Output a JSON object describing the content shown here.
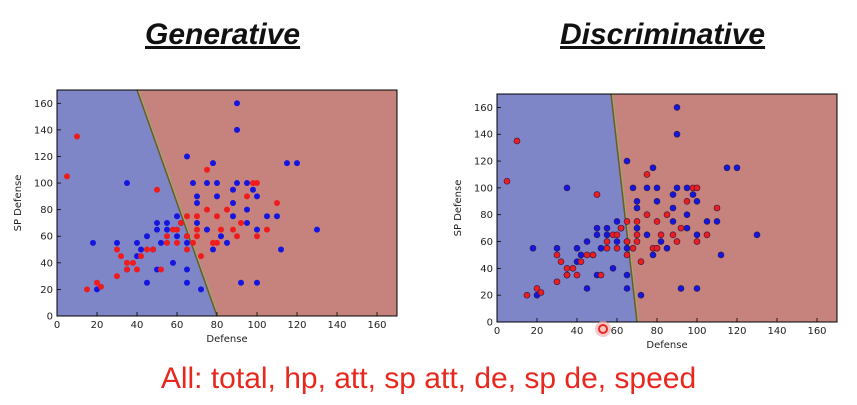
{
  "chart_data": [
    {
      "type": "scatter",
      "title": "Generative",
      "xlabel": "Defense",
      "ylabel": "SP Defense",
      "xlim": [
        0,
        170
      ],
      "ylim": [
        0,
        170
      ],
      "xticks": [
        0,
        20,
        40,
        60,
        80,
        100,
        120,
        140,
        160
      ],
      "yticks": [
        0,
        20,
        40,
        60,
        80,
        100,
        120,
        140,
        160
      ],
      "regions": [
        {
          "color": "#7f86c8",
          "side": "left"
        },
        {
          "color": "#c6827c",
          "side": "right"
        }
      ],
      "boundary": [
        [
          40,
          170
        ],
        [
          80,
          0
        ]
      ],
      "series": [
        {
          "color": "#1515e0",
          "points": [
            [
              18,
              55
            ],
            [
              20,
              20
            ],
            [
              30,
              55
            ],
            [
              35,
              35
            ],
            [
              35,
              100
            ],
            [
              40,
              55
            ],
            [
              40,
              45
            ],
            [
              42,
              50
            ],
            [
              45,
              25
            ],
            [
              45,
              60
            ],
            [
              48,
              50
            ],
            [
              50,
              65
            ],
            [
              50,
              70
            ],
            [
              50,
              35
            ],
            [
              52,
              55
            ],
            [
              55,
              65
            ],
            [
              55,
              70
            ],
            [
              58,
              40
            ],
            [
              60,
              60
            ],
            [
              60,
              75
            ],
            [
              62,
              70
            ],
            [
              65,
              60
            ],
            [
              65,
              55
            ],
            [
              65,
              35
            ],
            [
              65,
              120
            ],
            [
              65,
              25
            ],
            [
              68,
              100
            ],
            [
              70,
              90
            ],
            [
              70,
              85
            ],
            [
              70,
              70
            ],
            [
              72,
              20
            ],
            [
              75,
              100
            ],
            [
              75,
              65
            ],
            [
              78,
              115
            ],
            [
              78,
              50
            ],
            [
              80,
              100
            ],
            [
              80,
              90
            ],
            [
              82,
              60
            ],
            [
              85,
              55
            ],
            [
              88,
              75
            ],
            [
              88,
              85
            ],
            [
              88,
              95
            ],
            [
              90,
              160
            ],
            [
              90,
              140
            ],
            [
              90,
              100
            ],
            [
              92,
              25
            ],
            [
              95,
              100
            ],
            [
              95,
              70
            ],
            [
              95,
              80
            ],
            [
              98,
              95
            ],
            [
              100,
              25
            ],
            [
              100,
              90
            ],
            [
              100,
              65
            ],
            [
              105,
              75
            ],
            [
              110,
              75
            ],
            [
              112,
              50
            ],
            [
              115,
              115
            ],
            [
              120,
              115
            ],
            [
              130,
              65
            ]
          ]
        },
        {
          "color": "#ee1c1c",
          "points": [
            [
              5,
              105
            ],
            [
              10,
              135
            ],
            [
              15,
              20
            ],
            [
              20,
              25
            ],
            [
              22,
              22
            ],
            [
              30,
              30
            ],
            [
              30,
              50
            ],
            [
              32,
              45
            ],
            [
              35,
              35
            ],
            [
              35,
              40
            ],
            [
              38,
              40
            ],
            [
              40,
              35
            ],
            [
              42,
              45
            ],
            [
              45,
              50
            ],
            [
              48,
              50
            ],
            [
              50,
              95
            ],
            [
              52,
              35
            ],
            [
              55,
              55
            ],
            [
              55,
              60
            ],
            [
              58,
              65
            ],
            [
              60,
              55
            ],
            [
              60,
              65
            ],
            [
              62,
              70
            ],
            [
              65,
              50
            ],
            [
              65,
              60
            ],
            [
              65,
              75
            ],
            [
              68,
              55
            ],
            [
              70,
              60
            ],
            [
              70,
              65
            ],
            [
              70,
              75
            ],
            [
              72,
              45
            ],
            [
              75,
              80
            ],
            [
              75,
              110
            ],
            [
              78,
              55
            ],
            [
              80,
              55
            ],
            [
              80,
              75
            ],
            [
              82,
              65
            ],
            [
              85,
              80
            ],
            [
              88,
              65
            ],
            [
              90,
              60
            ],
            [
              92,
              70
            ],
            [
              95,
              90
            ],
            [
              98,
              100
            ],
            [
              100,
              100
            ],
            [
              100,
              60
            ],
            [
              105,
              65
            ],
            [
              110,
              85
            ]
          ]
        }
      ]
    },
    {
      "type": "scatter",
      "title": "Discriminative",
      "xlabel": "Defense",
      "ylabel": "SP Defense",
      "xlim": [
        0,
        170
      ],
      "ylim": [
        0,
        170
      ],
      "xticks": [
        0,
        20,
        40,
        60,
        80,
        100,
        120,
        140,
        160
      ],
      "yticks": [
        0,
        20,
        40,
        60,
        80,
        100,
        120,
        140,
        160
      ],
      "regions": [
        {
          "color": "#7f86c8",
          "side": "left"
        },
        {
          "color": "#c6827c",
          "side": "right"
        }
      ],
      "boundary": [
        [
          57,
          170
        ],
        [
          70,
          0
        ]
      ],
      "series": [
        {
          "color": "#1515e0",
          "points": [
            [
              18,
              55
            ],
            [
              20,
              20
            ],
            [
              30,
              55
            ],
            [
              35,
              35
            ],
            [
              35,
              100
            ],
            [
              40,
              55
            ],
            [
              40,
              45
            ],
            [
              42,
              50
            ],
            [
              45,
              25
            ],
            [
              45,
              60
            ],
            [
              48,
              50
            ],
            [
              50,
              65
            ],
            [
              50,
              70
            ],
            [
              50,
              35
            ],
            [
              52,
              55
            ],
            [
              55,
              65
            ],
            [
              55,
              70
            ],
            [
              58,
              40
            ],
            [
              60,
              60
            ],
            [
              60,
              75
            ],
            [
              62,
              70
            ],
            [
              65,
              60
            ],
            [
              65,
              55
            ],
            [
              65,
              35
            ],
            [
              65,
              120
            ],
            [
              65,
              25
            ],
            [
              68,
              100
            ],
            [
              70,
              90
            ],
            [
              70,
              85
            ],
            [
              70,
              70
            ],
            [
              72,
              20
            ],
            [
              75,
              100
            ],
            [
              75,
              65
            ],
            [
              78,
              115
            ],
            [
              78,
              50
            ],
            [
              80,
              100
            ],
            [
              80,
              90
            ],
            [
              82,
              60
            ],
            [
              85,
              55
            ],
            [
              88,
              75
            ],
            [
              88,
              85
            ],
            [
              88,
              95
            ],
            [
              90,
              160
            ],
            [
              90,
              140
            ],
            [
              90,
              100
            ],
            [
              92,
              25
            ],
            [
              95,
              100
            ],
            [
              95,
              70
            ],
            [
              95,
              80
            ],
            [
              98,
              95
            ],
            [
              100,
              25
            ],
            [
              100,
              90
            ],
            [
              100,
              65
            ],
            [
              105,
              75
            ],
            [
              110,
              75
            ],
            [
              112,
              50
            ],
            [
              115,
              115
            ],
            [
              120,
              115
            ],
            [
              130,
              65
            ]
          ]
        },
        {
          "color": "#ee1c1c",
          "points": [
            [
              5,
              105
            ],
            [
              10,
              135
            ],
            [
              15,
              20
            ],
            [
              20,
              25
            ],
            [
              22,
              22
            ],
            [
              30,
              30
            ],
            [
              30,
              50
            ],
            [
              32,
              45
            ],
            [
              35,
              35
            ],
            [
              35,
              40
            ],
            [
              38,
              40
            ],
            [
              40,
              35
            ],
            [
              42,
              45
            ],
            [
              45,
              50
            ],
            [
              48,
              50
            ],
            [
              50,
              95
            ],
            [
              52,
              35
            ],
            [
              55,
              55
            ],
            [
              55,
              60
            ],
            [
              58,
              65
            ],
            [
              60,
              55
            ],
            [
              60,
              65
            ],
            [
              62,
              70
            ],
            [
              65,
              50
            ],
            [
              65,
              60
            ],
            [
              65,
              75
            ],
            [
              68,
              55
            ],
            [
              70,
              60
            ],
            [
              70,
              65
            ],
            [
              70,
              75
            ],
            [
              72,
              45
            ],
            [
              75,
              80
            ],
            [
              75,
              110
            ],
            [
              78,
              55
            ],
            [
              80,
              55
            ],
            [
              80,
              75
            ],
            [
              82,
              65
            ],
            [
              85,
              80
            ],
            [
              88,
              65
            ],
            [
              90,
              60
            ],
            [
              92,
              70
            ],
            [
              95,
              90
            ],
            [
              98,
              100
            ],
            [
              100,
              100
            ],
            [
              100,
              60
            ],
            [
              105,
              65
            ],
            [
              110,
              85
            ]
          ]
        }
      ]
    }
  ],
  "caption": "All: total, hp, att, sp att, de, sp de, speed"
}
